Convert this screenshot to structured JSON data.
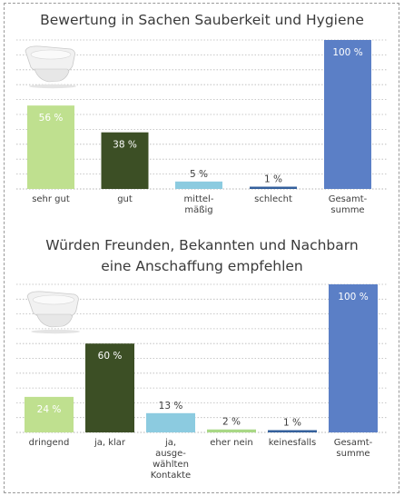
{
  "chart_data": [
    {
      "type": "bar",
      "title": "Bewertung in Sachen Sauberkeit und Hygiene",
      "categories": [
        "sehr gut",
        "gut",
        "mittel-mäßig",
        "schlecht",
        "Gesamt-summe"
      ],
      "category_lines": [
        [
          "sehr gut"
        ],
        [
          "gut"
        ],
        [
          "mittel-",
          "mäßig"
        ],
        [
          "schlecht"
        ],
        [
          "Gesamt-",
          "summe"
        ]
      ],
      "values": [
        56,
        38,
        5,
        1,
        100
      ],
      "value_labels": [
        "56 %",
        "38 %",
        "5 %",
        "1 %",
        "100 %"
      ],
      "colors": [
        "#bfe08f",
        "#3c4f25",
        "#8ccbe0",
        "#34609c",
        "#5b7fc6"
      ],
      "ylim": [
        0,
        100
      ],
      "grid": true,
      "image": "toilet-image"
    },
    {
      "type": "bar",
      "title": "Würden Freunden, Bekannten und Nachbarn eine Anschaffung empfehlen",
      "title_lines": [
        "Würden Freunden, Bekannten und Nachbarn",
        "eine Anschaffung empfehlen"
      ],
      "categories": [
        "dringend",
        "ja, klar",
        "ja, ausge-wählten Kontakte",
        "eher nein",
        "keinesfalls",
        "Gesamt-summe"
      ],
      "category_lines": [
        [
          "dringend"
        ],
        [
          "ja, klar"
        ],
        [
          "ja,",
          "ausge-",
          "wählten",
          "Kontakte"
        ],
        [
          "eher nein"
        ],
        [
          "keinesfalls"
        ],
        [
          "Gesamt-",
          "summe"
        ]
      ],
      "values": [
        24,
        60,
        13,
        2,
        1,
        100
      ],
      "value_labels": [
        "24 %",
        "60 %",
        "13 %",
        "2 %",
        "1 %",
        "100 %"
      ],
      "colors": [
        "#bfe08f",
        "#3c4f25",
        "#8ccbe0",
        "#a9d886",
        "#34609c",
        "#5b7fc6"
      ],
      "ylim": [
        0,
        100
      ],
      "grid": true,
      "image": "toilet-image"
    }
  ]
}
